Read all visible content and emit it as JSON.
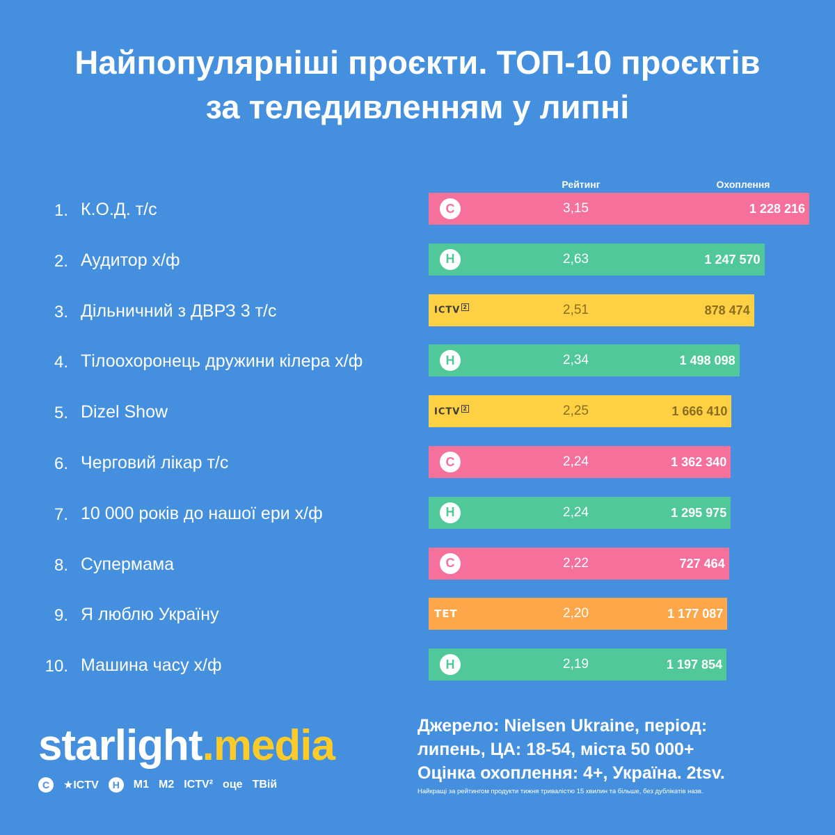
{
  "title_line1": "Найпопулярніші проєкти. ТОП-10 проєктів",
  "title_line2": "за теледивленням у липні",
  "columns": {
    "rating": "Рейтинг",
    "reach": "Охоплення"
  },
  "colors": {
    "background": "#4490df",
    "channel_s": "#f5719b",
    "channel_n": "#50c899",
    "channel_ictv2": "#fdd143",
    "channel_tet": "#fda64a"
  },
  "chart_data": {
    "type": "bar",
    "orientation": "horizontal",
    "categories": [
      "К.О.Д. т/с",
      "Аудитор х/ф",
      "Дільничний з ДВРЗ 3 т/с",
      "Тілоохоронець дружини кілера х/ф",
      "Dizel Show",
      "Черговий лікар т/с",
      "10 000 років до нашої ери х/ф",
      "Супермама",
      "Я люблю Україну",
      "Машина часу х/ф"
    ],
    "series": [
      {
        "name": "Рейтинг",
        "values": [
          3.15,
          2.63,
          2.51,
          2.34,
          2.25,
          2.24,
          2.24,
          2.22,
          2.2,
          2.19
        ]
      },
      {
        "name": "Охоплення",
        "values": [
          1228216,
          1247570,
          878474,
          1498098,
          1666410,
          1362340,
          1295975,
          727464,
          1177087,
          1197854
        ]
      }
    ],
    "xlim": [
      0,
      3.15
    ],
    "grid": false,
    "legend": "none",
    "rows": [
      {
        "rank": "1.",
        "name": "К.О.Д. т/с",
        "rating": 3.15,
        "rating_label": "3,15",
        "reach_label": "1 228 216",
        "channel": "s"
      },
      {
        "rank": "2.",
        "name": "Аудитор х/ф",
        "rating": 2.63,
        "rating_label": "2,63",
        "reach_label": "1 247 570",
        "channel": "n"
      },
      {
        "rank": "3.",
        "name": "Дільничний з ДВРЗ 3 т/с",
        "rating": 2.51,
        "rating_label": "2,51",
        "reach_label": "878 474",
        "channel": "ictv2"
      },
      {
        "rank": "4.",
        "name": "Тілоохоронець дружини кілера х/ф",
        "rating": 2.34,
        "rating_label": "2,34",
        "reach_label": "1 498 098",
        "channel": "n"
      },
      {
        "rank": "5.",
        "name": "Dizel Show",
        "rating": 2.25,
        "rating_label": "2,25",
        "reach_label": "1 666 410",
        "channel": "ictv2"
      },
      {
        "rank": "6.",
        "name": "Черговий лікар т/с",
        "rating": 2.24,
        "rating_label": "2,24",
        "reach_label": "1 362 340",
        "channel": "s"
      },
      {
        "rank": "7.",
        "name": "10 000 років до нашої ери х/ф",
        "rating": 2.24,
        "rating_label": "2,24",
        "reach_label": "1 295 975",
        "channel": "n"
      },
      {
        "rank": "8.",
        "name": "Супермама",
        "rating": 2.22,
        "rating_label": "2,22",
        "reach_label": "727 464",
        "channel": "s"
      },
      {
        "rank": "9.",
        "name": "Я люблю Україну",
        "rating": 2.2,
        "rating_label": "2,20",
        "reach_label": "1 177 087",
        "channel": "tet"
      },
      {
        "rank": "10.",
        "name": "Машина часу х/ф",
        "rating": 2.19,
        "rating_label": "2,19",
        "reach_label": "1 197 854",
        "channel": "n"
      }
    ]
  },
  "channel_logos": {
    "s": {
      "icon": "stb-logo-icon",
      "glyph": "С"
    },
    "n": {
      "icon": "novyi-logo-icon",
      "glyph": "Н"
    },
    "ictv2": {
      "icon": "ictv2-logo-icon",
      "text": "ICTV",
      "sup": "2"
    },
    "tet": {
      "icon": "tet-logo-icon",
      "text": "ТЕТ"
    }
  },
  "brand": {
    "part1": "starlight",
    "part2": ".media"
  },
  "brand_channels": {
    "stb": "С",
    "ictv": "★ICTV",
    "novyi": "Н",
    "m1": "М1",
    "m2": "М2",
    "ictv2": "ICTV²",
    "oce": "оце",
    "tviy": "ТВій"
  },
  "source": {
    "line1": "Джерело: Nielsen Ukraine, період:",
    "line2": "липень, ЦА: 18-54, міста 50 000+",
    "line3": "Оцінка охоплення: 4+, Україна. 2tsv."
  },
  "footnote": "Найкращі за рейтингом продукти тижня тривалістю 15 хвилин та більше, без дублікатів назв."
}
